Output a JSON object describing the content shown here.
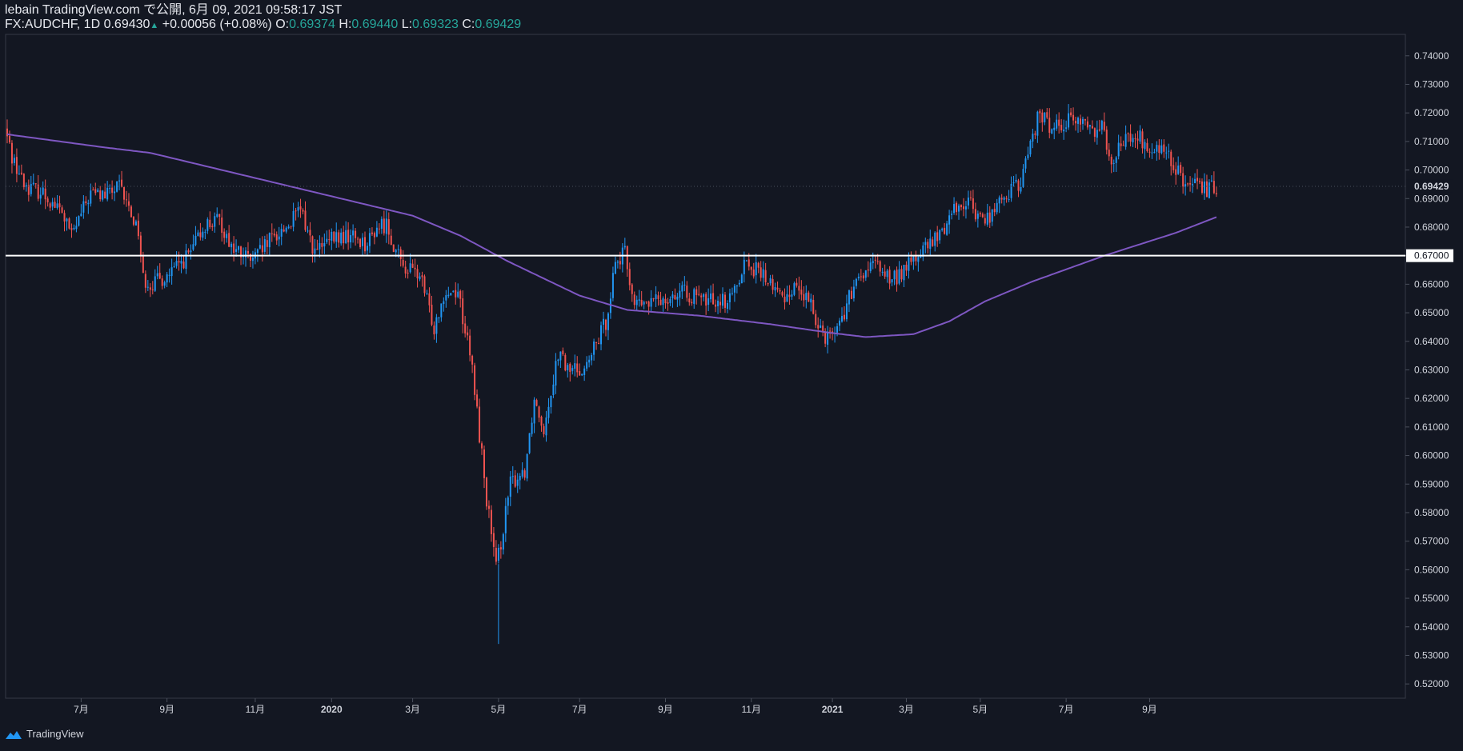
{
  "header": {
    "line1": "lebain TradingView.com で公開, 6月 09, 2021 09:58:17 JST",
    "symbol": "FX:AUDCHF, 1D",
    "last": "0.69430",
    "change": "+0.00056 (+0.08%)",
    "o_label": "O:",
    "o": "0.69374",
    "h_label": "H:",
    "h": "0.69440",
    "l_label": "L:",
    "l": "0.69323",
    "c_label": "C:",
    "c": "0.69429"
  },
  "footer": {
    "brand": "TradingView"
  },
  "colors": {
    "background": "#131722",
    "up": "#2196f3",
    "down": "#ef5350",
    "ma": "#7e57c2",
    "hline": "#ffffff",
    "ohlc_value": "#26a69a"
  },
  "chart_data": {
    "type": "candlestick",
    "ylim": [
      0.515,
      0.7475
    ],
    "yticks": [
      "0.74000",
      "0.73000",
      "0.72000",
      "0.71000",
      "0.70000",
      "0.69000",
      "0.68000",
      "0.67000",
      "0.66000",
      "0.65000",
      "0.64000",
      "0.63000",
      "0.62000",
      "0.61000",
      "0.60000",
      "0.59000",
      "0.58000",
      "0.57000",
      "0.56000",
      "0.55000",
      "0.54000",
      "0.53000",
      "0.52000"
    ],
    "xticks": [
      "7月",
      "9月",
      "11月",
      "2020",
      "3月",
      "5月",
      "7月",
      "9月",
      "11月",
      "2021",
      "3月",
      "5月",
      "7月",
      "9月"
    ],
    "last_price_label": "0.69429",
    "hline_label": "0.67000",
    "hline_value": 0.67,
    "price_path": [
      [
        0,
        0.7145
      ],
      [
        3,
        0.705
      ],
      [
        8,
        0.695
      ],
      [
        16,
        0.692
      ],
      [
        24,
        0.685
      ],
      [
        28,
        0.677
      ],
      [
        36,
        0.692
      ],
      [
        42,
        0.691
      ],
      [
        48,
        0.694
      ],
      [
        56,
        0.679
      ],
      [
        58,
        0.662
      ],
      [
        62,
        0.66
      ],
      [
        70,
        0.664
      ],
      [
        78,
        0.671
      ],
      [
        84,
        0.681
      ],
      [
        90,
        0.682
      ],
      [
        96,
        0.672
      ],
      [
        104,
        0.668
      ],
      [
        112,
        0.676
      ],
      [
        118,
        0.68
      ],
      [
        124,
        0.686
      ],
      [
        130,
        0.671
      ],
      [
        138,
        0.676
      ],
      [
        146,
        0.677
      ],
      [
        152,
        0.674
      ],
      [
        156,
        0.68
      ],
      [
        160,
        0.681
      ],
      [
        166,
        0.667
      ],
      [
        174,
        0.663
      ],
      [
        180,
        0.645
      ],
      [
        184,
        0.657
      ],
      [
        190,
        0.658
      ],
      [
        196,
        0.63
      ],
      [
        202,
        0.585
      ],
      [
        206,
        0.56
      ],
      [
        212,
        0.59
      ],
      [
        218,
        0.595
      ],
      [
        222,
        0.62
      ],
      [
        226,
        0.61
      ],
      [
        232,
        0.636
      ],
      [
        236,
        0.63
      ],
      [
        244,
        0.631
      ],
      [
        252,
        0.647
      ],
      [
        256,
        0.668
      ],
      [
        260,
        0.6705
      ],
      [
        264,
        0.653
      ],
      [
        270,
        0.653
      ],
      [
        278,
        0.656
      ],
      [
        286,
        0.657
      ],
      [
        292,
        0.654
      ],
      [
        298,
        0.655
      ],
      [
        304,
        0.654
      ],
      [
        310,
        0.668
      ],
      [
        318,
        0.663
      ],
      [
        326,
        0.655
      ],
      [
        332,
        0.66
      ],
      [
        338,
        0.652
      ],
      [
        344,
        0.642
      ],
      [
        350,
        0.646
      ],
      [
        354,
        0.655
      ],
      [
        360,
        0.664
      ],
      [
        366,
        0.667
      ],
      [
        372,
        0.661
      ],
      [
        378,
        0.666
      ],
      [
        384,
        0.671
      ],
      [
        392,
        0.677
      ],
      [
        398,
        0.687
      ],
      [
        404,
        0.689
      ],
      [
        410,
        0.682
      ],
      [
        416,
        0.687
      ],
      [
        420,
        0.692
      ],
      [
        426,
        0.695
      ],
      [
        430,
        0.71
      ],
      [
        434,
        0.72
      ],
      [
        438,
        0.715
      ],
      [
        444,
        0.717
      ],
      [
        450,
        0.718
      ],
      [
        456,
        0.714
      ],
      [
        460,
        0.716
      ],
      [
        464,
        0.704
      ],
      [
        470,
        0.711
      ],
      [
        476,
        0.711
      ],
      [
        480,
        0.706
      ],
      [
        486,
        0.707
      ],
      [
        492,
        0.699
      ],
      [
        496,
        0.694
      ],
      [
        500,
        0.694
      ],
      [
        504,
        0.693
      ],
      [
        507,
        0.6943
      ]
    ],
    "ma_path": [
      [
        0,
        0.7125
      ],
      [
        40,
        0.708
      ],
      [
        60,
        0.706
      ],
      [
        90,
        0.7
      ],
      [
        130,
        0.692
      ],
      [
        170,
        0.684
      ],
      [
        190,
        0.677
      ],
      [
        210,
        0.668
      ],
      [
        240,
        0.656
      ],
      [
        260,
        0.651
      ],
      [
        290,
        0.649
      ],
      [
        320,
        0.646
      ],
      [
        345,
        0.643
      ],
      [
        360,
        0.6415
      ],
      [
        380,
        0.6425
      ],
      [
        395,
        0.647
      ],
      [
        410,
        0.654
      ],
      [
        430,
        0.661
      ],
      [
        460,
        0.67
      ],
      [
        490,
        0.678
      ],
      [
        507,
        0.6835
      ]
    ]
  }
}
